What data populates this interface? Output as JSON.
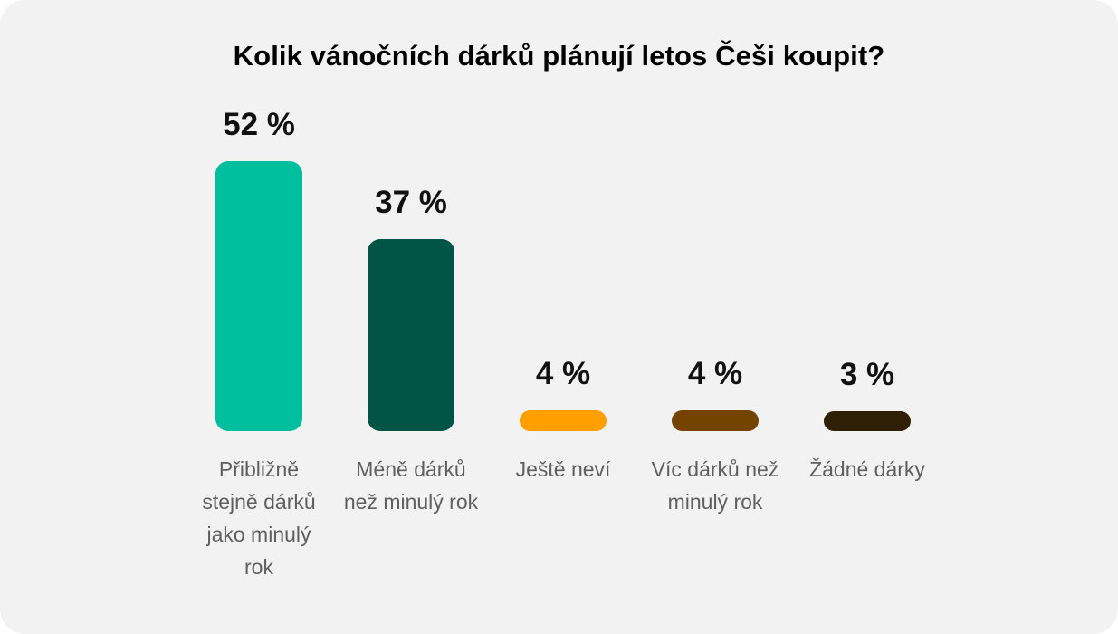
{
  "chart_data": {
    "type": "bar",
    "title": "Kolik vánočních dárků plánují letos Češi koupit?",
    "categories": [
      "Přibližně stejně dárků jako minulý rok",
      "Méně dárků než minulý rok",
      "Ještě neví",
      "Víc dárků než minulý rok",
      "Žádné dárky"
    ],
    "values": [
      52,
      37,
      4,
      4,
      3
    ],
    "value_labels": [
      "52 %",
      "37 %",
      "4 %",
      "4 %",
      "3 %"
    ],
    "colors": [
      "#00bf9f",
      "#025445",
      "#ff9f00",
      "#744300",
      "#2f1f05"
    ],
    "ylim": [
      0,
      52
    ],
    "grid": false,
    "legend": "none"
  }
}
